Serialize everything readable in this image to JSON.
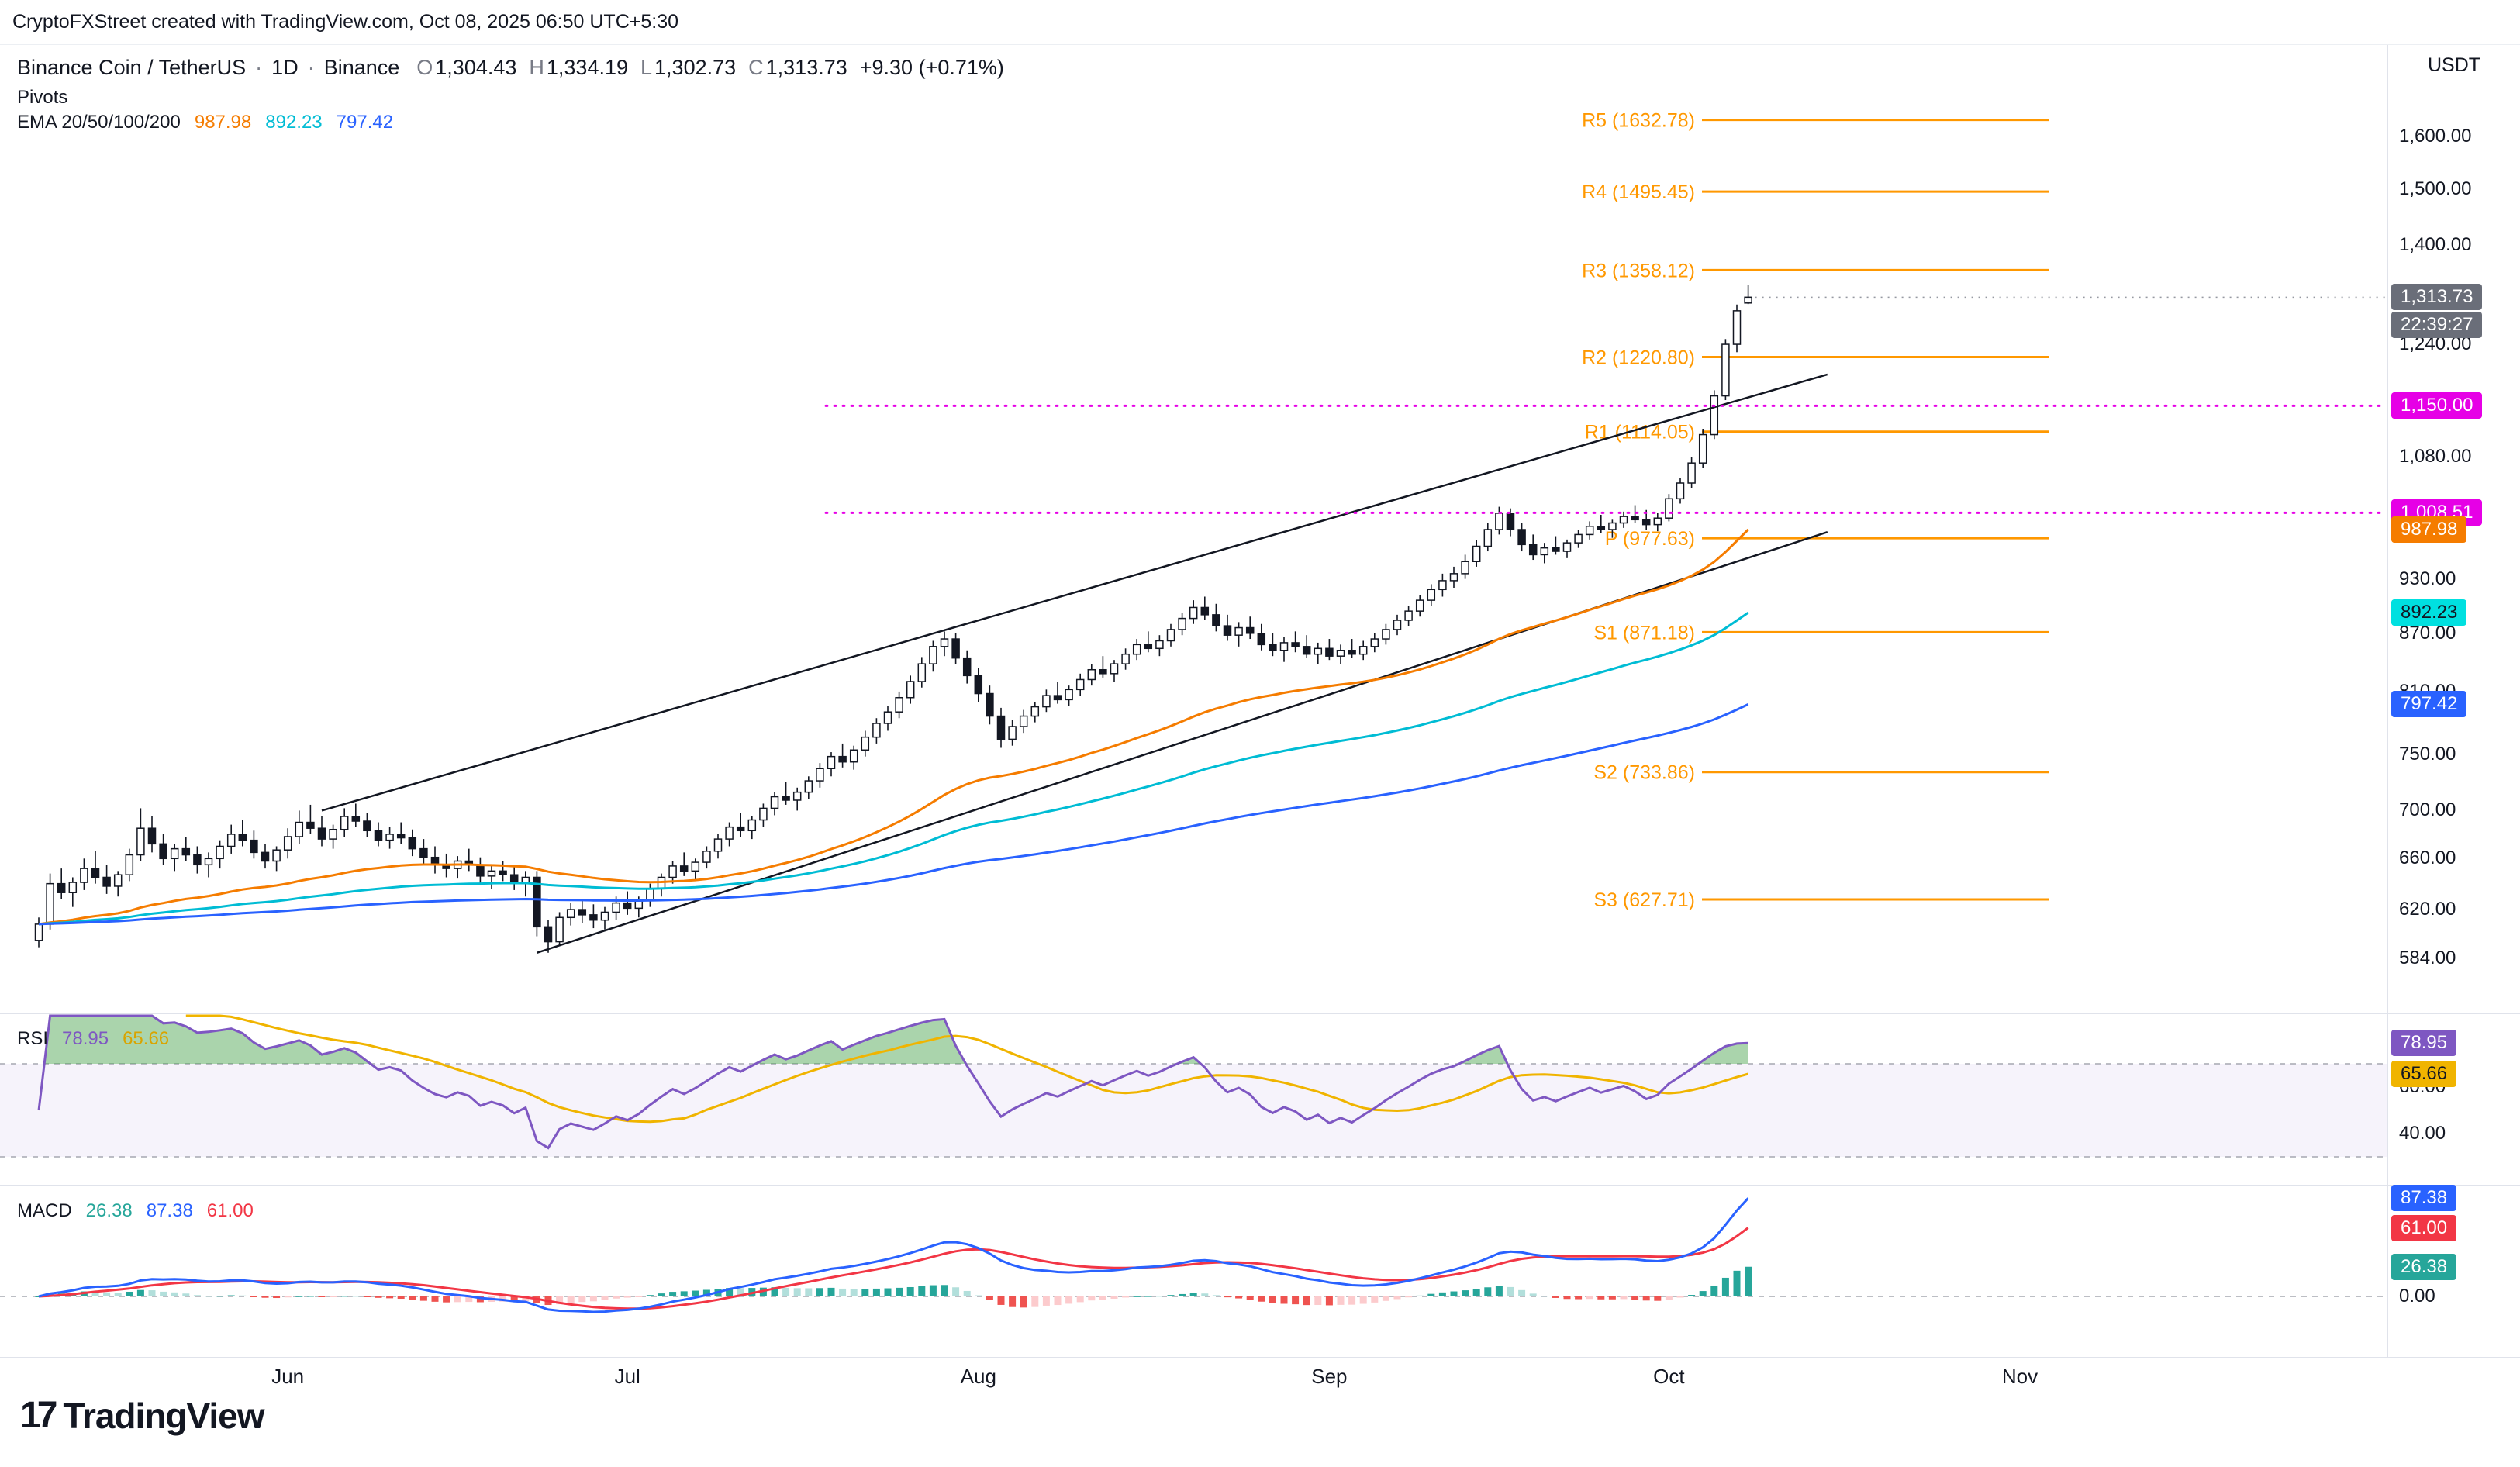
{
  "top_bar": {
    "text": "CryptoFXStreet created with TradingView.com, Oct 08, 2025 06:50 UTC+5:30"
  },
  "header": {
    "symbol": "Binance Coin / TetherUS",
    "separator": "·",
    "interval": "1D",
    "exchange": "Binance",
    "ohlc": [
      {
        "label": "O",
        "value": "1,304.43"
      },
      {
        "label": "H",
        "value": "1,334.19"
      },
      {
        "label": "L",
        "value": "1,302.73"
      },
      {
        "label": "C",
        "value": "1,313.73"
      }
    ],
    "change": "+9.30 (+0.71%)",
    "pivots_label": "Pivots",
    "ema": {
      "label": "EMA 20/50/100/200",
      "values": [
        {
          "text": "987.98",
          "color": "#f57c00"
        },
        {
          "text": "892.23",
          "color": "#00bcd4"
        },
        {
          "text": "797.42",
          "color": "#2962ff"
        }
      ]
    }
  },
  "rsi_panel": {
    "title": "RSI",
    "values": [
      {
        "text": "78.95",
        "color": "#7e57c2"
      },
      {
        "text": "65.66",
        "color": "#d9a400"
      }
    ],
    "badges": [
      {
        "name": "rsi-badge",
        "text": "78.95",
        "value": 78.95,
        "bg": "#7e57c2",
        "fg": "#ffffff"
      },
      {
        "name": "rsi-ma-badge",
        "text": "65.66",
        "value": 65.66,
        "bg": "#f0b400",
        "fg": "#131722"
      }
    ],
    "ticks": [
      {
        "text": "60.00",
        "value": 60
      },
      {
        "text": "40.00",
        "value": 40
      }
    ]
  },
  "macd_panel": {
    "title": "MACD",
    "values": [
      {
        "text": "26.38",
        "color": "#26a69a"
      },
      {
        "text": "87.38",
        "color": "#2962ff"
      },
      {
        "text": "61.00",
        "color": "#f23645"
      }
    ],
    "badges": [
      {
        "name": "macd-line-badge",
        "text": "87.38",
        "value": 87.38,
        "bg": "#2962ff",
        "fg": "#ffffff"
      },
      {
        "name": "macd-signal-badge",
        "text": "61.00",
        "value": 61.0,
        "bg": "#f23645",
        "fg": "#ffffff"
      },
      {
        "name": "macd-hist-badge",
        "text": "26.38",
        "value": 26.38,
        "bg": "#26a69a",
        "fg": "#ffffff"
      }
    ],
    "ticks": [
      {
        "text": "0.00",
        "value": 0
      }
    ]
  },
  "price_scale": {
    "currency": "USDT",
    "ticks": [
      {
        "text": "1,600.00",
        "price": 1600
      },
      {
        "text": "1,500.00",
        "price": 1500
      },
      {
        "text": "1,400.00",
        "price": 1400
      },
      {
        "text": "1,240.00",
        "price": 1240
      },
      {
        "text": "1,080.00",
        "price": 1080
      },
      {
        "text": "930.00",
        "price": 930
      },
      {
        "text": "870.00",
        "price": 870
      },
      {
        "text": "810.00",
        "price": 810
      },
      {
        "text": "750.00",
        "price": 750
      },
      {
        "text": "700.00",
        "price": 700
      },
      {
        "text": "660.00",
        "price": 660
      },
      {
        "text": "620.00",
        "price": 620
      },
      {
        "text": "584.00",
        "price": 584
      }
    ],
    "badges": [
      {
        "name": "last-price-badge",
        "text": "1,313.73",
        "price": 1313.73,
        "offset": 0,
        "bg": "#6a6e79",
        "fg": "#ffffff"
      },
      {
        "name": "countdown-badge",
        "text": "22:39:27",
        "price": 1313.73,
        "offset": 36,
        "bg": "#6a6e79",
        "fg": "#ffffff"
      },
      {
        "name": "hline-1150-badge",
        "text": "1,150.00",
        "price": 1150,
        "offset": 0,
        "bg": "#e600e6",
        "fg": "#ffffff"
      },
      {
        "name": "hline-1008-badge",
        "text": "1,008.51",
        "price": 1008.51,
        "offset": 0,
        "bg": "#e600e6",
        "fg": "#ffffff"
      },
      {
        "name": "ema50-badge",
        "text": "987.98",
        "price": 987.98,
        "offset": 0,
        "bg": "#f57c00",
        "fg": "#ffffff"
      },
      {
        "name": "ema100-badge",
        "text": "892.23",
        "price": 892.23,
        "offset": 0,
        "bg": "#00e0e0",
        "fg": "#131722"
      },
      {
        "name": "ema200-badge",
        "text": "797.42",
        "price": 797.42,
        "offset": 0,
        "bg": "#2962ff",
        "fg": "#ffffff"
      }
    ]
  },
  "time_axis": {
    "months": [
      {
        "label": "Jun",
        "index": 22
      },
      {
        "label": "Jul",
        "index": 52
      },
      {
        "label": "Aug",
        "index": 83
      },
      {
        "label": "Sep",
        "index": 114
      },
      {
        "label": "Oct",
        "index": 144
      },
      {
        "label": "Nov",
        "index": 175
      }
    ]
  },
  "logo": {
    "mark": "17",
    "text": "TradingView"
  },
  "chart_data": {
    "type": "candlestick",
    "symbol": "Binance Coin / TetherUS",
    "exchange": "Binance",
    "interval": "1D",
    "price_scale_type": "log",
    "start_date": "2025-05-10",
    "end_date": "2025-10-08",
    "last_price": 1313.73,
    "countdown": "22:39:27",
    "candle_up_color": "#ffffff",
    "candle_down_color": "#131722",
    "candle_border_color": "#131722",
    "candles": [
      [
        597,
        614,
        592,
        609
      ],
      [
        609,
        648,
        605,
        640
      ],
      [
        640,
        652,
        628,
        633
      ],
      [
        633,
        645,
        622,
        641
      ],
      [
        641,
        660,
        635,
        652
      ],
      [
        652,
        666,
        640,
        645
      ],
      [
        645,
        655,
        632,
        638
      ],
      [
        638,
        650,
        630,
        647
      ],
      [
        647,
        668,
        642,
        663
      ],
      [
        663,
        702,
        658,
        685
      ],
      [
        685,
        695,
        665,
        672
      ],
      [
        672,
        680,
        655,
        660
      ],
      [
        660,
        672,
        650,
        668
      ],
      [
        668,
        678,
        658,
        663
      ],
      [
        663,
        670,
        648,
        655
      ],
      [
        655,
        665,
        645,
        660
      ],
      [
        660,
        675,
        652,
        670
      ],
      [
        670,
        688,
        664,
        680
      ],
      [
        680,
        692,
        670,
        675
      ],
      [
        675,
        683,
        660,
        665
      ],
      [
        665,
        672,
        652,
        658
      ],
      [
        658,
        670,
        650,
        667
      ],
      [
        667,
        685,
        660,
        678
      ],
      [
        678,
        700,
        672,
        690
      ],
      [
        690,
        705,
        680,
        685
      ],
      [
        685,
        695,
        670,
        676
      ],
      [
        676,
        688,
        668,
        684
      ],
      [
        684,
        702,
        678,
        695
      ],
      [
        695,
        706,
        686,
        691
      ],
      [
        691,
        698,
        678,
        683
      ],
      [
        683,
        690,
        670,
        675
      ],
      [
        675,
        686,
        668,
        680
      ],
      [
        680,
        690,
        672,
        677
      ],
      [
        677,
        684,
        662,
        668
      ],
      [
        668,
        676,
        655,
        661
      ],
      [
        661,
        670,
        648,
        655
      ],
      [
        655,
        664,
        645,
        652
      ],
      [
        652,
        662,
        644,
        658
      ],
      [
        658,
        668,
        650,
        655
      ],
      [
        655,
        661,
        640,
        646
      ],
      [
        646,
        655,
        636,
        650
      ],
      [
        650,
        658,
        642,
        647
      ],
      [
        647,
        653,
        635,
        640
      ],
      [
        640,
        650,
        630,
        645
      ],
      [
        645,
        650,
        600,
        607
      ],
      [
        607,
        612,
        588,
        596
      ],
      [
        596,
        618,
        593,
        614
      ],
      [
        614,
        625,
        608,
        620
      ],
      [
        620,
        628,
        610,
        616
      ],
      [
        616,
        624,
        606,
        612
      ],
      [
        612,
        622,
        605,
        618
      ],
      [
        618,
        630,
        612,
        625
      ],
      [
        625,
        634,
        616,
        621
      ],
      [
        621,
        630,
        614,
        627
      ],
      [
        627,
        640,
        622,
        636
      ],
      [
        636,
        648,
        630,
        645
      ],
      [
        645,
        658,
        640,
        654
      ],
      [
        654,
        665,
        646,
        650
      ],
      [
        650,
        660,
        642,
        657
      ],
      [
        657,
        670,
        652,
        666
      ],
      [
        666,
        680,
        660,
        676
      ],
      [
        676,
        690,
        670,
        686
      ],
      [
        686,
        698,
        678,
        683
      ],
      [
        683,
        695,
        676,
        692
      ],
      [
        692,
        706,
        686,
        702
      ],
      [
        702,
        716,
        696,
        712
      ],
      [
        712,
        725,
        705,
        709
      ],
      [
        709,
        720,
        700,
        716
      ],
      [
        716,
        730,
        710,
        726
      ],
      [
        726,
        742,
        720,
        737
      ],
      [
        737,
        752,
        730,
        748
      ],
      [
        748,
        760,
        738,
        743
      ],
      [
        743,
        758,
        736,
        754
      ],
      [
        754,
        772,
        748,
        766
      ],
      [
        766,
        784,
        760,
        779
      ],
      [
        779,
        796,
        772,
        790
      ],
      [
        790,
        810,
        784,
        804
      ],
      [
        804,
        826,
        798,
        820
      ],
      [
        820,
        845,
        814,
        838
      ],
      [
        838,
        862,
        830,
        856
      ],
      [
        856,
        872,
        846,
        864
      ],
      [
        864,
        870,
        838,
        844
      ],
      [
        844,
        852,
        818,
        826
      ],
      [
        826,
        834,
        800,
        808
      ],
      [
        808,
        816,
        778,
        786
      ],
      [
        786,
        794,
        756,
        764
      ],
      [
        764,
        782,
        758,
        776
      ],
      [
        776,
        792,
        770,
        786
      ],
      [
        786,
        800,
        780,
        795
      ],
      [
        795,
        812,
        790,
        806
      ],
      [
        806,
        820,
        798,
        802
      ],
      [
        802,
        816,
        796,
        812
      ],
      [
        812,
        828,
        806,
        822
      ],
      [
        822,
        838,
        816,
        832
      ],
      [
        832,
        846,
        824,
        828
      ],
      [
        828,
        842,
        820,
        838
      ],
      [
        838,
        854,
        832,
        848
      ],
      [
        848,
        864,
        842,
        858
      ],
      [
        858,
        872,
        850,
        854
      ],
      [
        854,
        868,
        846,
        862
      ],
      [
        862,
        880,
        856,
        874
      ],
      [
        874,
        892,
        868,
        886
      ],
      [
        886,
        906,
        880,
        898
      ],
      [
        898,
        910,
        884,
        890
      ],
      [
        890,
        902,
        872,
        878
      ],
      [
        878,
        890,
        862,
        868
      ],
      [
        868,
        882,
        856,
        876
      ],
      [
        876,
        888,
        864,
        870
      ],
      [
        870,
        880,
        852,
        858
      ],
      [
        858,
        870,
        846,
        852
      ],
      [
        852,
        866,
        840,
        860
      ],
      [
        860,
        872,
        850,
        856
      ],
      [
        856,
        868,
        844,
        848
      ],
      [
        848,
        860,
        838,
        854
      ],
      [
        854,
        864,
        842,
        846
      ],
      [
        846,
        858,
        838,
        852
      ],
      [
        852,
        864,
        844,
        848
      ],
      [
        848,
        862,
        842,
        856
      ],
      [
        856,
        870,
        850,
        864
      ],
      [
        864,
        880,
        858,
        874
      ],
      [
        874,
        890,
        868,
        884
      ],
      [
        884,
        900,
        878,
        894
      ],
      [
        894,
        912,
        888,
        906
      ],
      [
        906,
        924,
        900,
        918
      ],
      [
        918,
        936,
        910,
        928
      ],
      [
        928,
        944,
        920,
        936
      ],
      [
        936,
        958,
        930,
        950
      ],
      [
        950,
        975,
        944,
        968
      ],
      [
        968,
        996,
        962,
        988
      ],
      [
        988,
        1016,
        982,
        1008
      ],
      [
        1008,
        1014,
        980,
        988
      ],
      [
        988,
        996,
        962,
        970
      ],
      [
        970,
        982,
        952,
        958
      ],
      [
        958,
        972,
        948,
        966
      ],
      [
        966,
        980,
        958,
        962
      ],
      [
        962,
        976,
        954,
        972
      ],
      [
        972,
        988,
        966,
        982
      ],
      [
        982,
        998,
        976,
        992
      ],
      [
        992,
        1006,
        984,
        988
      ],
      [
        988,
        1000,
        978,
        996
      ],
      [
        996,
        1010,
        990,
        1004
      ],
      [
        1004,
        1018,
        996,
        1000
      ],
      [
        1000,
        1012,
        988,
        994
      ],
      [
        994,
        1008,
        986,
        1002
      ],
      [
        1002,
        1032,
        998,
        1026
      ],
      [
        1026,
        1052,
        1020,
        1046
      ],
      [
        1046,
        1080,
        1040,
        1072
      ],
      [
        1072,
        1118,
        1066,
        1110
      ],
      [
        1110,
        1172,
        1104,
        1164
      ],
      [
        1164,
        1248,
        1158,
        1240
      ],
      [
        1240,
        1302,
        1228,
        1292
      ],
      [
        1304.43,
        1334.19,
        1302.73,
        1313.73
      ]
    ],
    "emas": [
      {
        "period": 50,
        "color": "#f57c00",
        "last": 987.98
      },
      {
        "period": 100,
        "color": "#00bcd4",
        "last": 892.23
      },
      {
        "period": 200,
        "color": "#2962ff",
        "last": 797.42
      }
    ],
    "pivot_color": "#ff9800",
    "pivots": [
      {
        "label": "R5 (1632.78)",
        "value": 1632.78
      },
      {
        "label": "R4 (1495.45)",
        "value": 1495.45
      },
      {
        "label": "R3 (1358.12)",
        "value": 1358.12
      },
      {
        "label": "R2 (1220.80)",
        "value": 1220.8
      },
      {
        "label": "R1 (1114.05)",
        "value": 1114.05
      },
      {
        "label": "P (977.63)",
        "value": 977.63
      },
      {
        "label": "S1 (871.18)",
        "value": 871.18
      },
      {
        "label": "S2 (733.86)",
        "value": 733.86
      },
      {
        "label": "S3 (627.71)",
        "value": 627.71
      }
    ],
    "h_lines": [
      {
        "value": 1150.0,
        "label": "1,150.00",
        "color": "#e600e6"
      },
      {
        "value": 1008.51,
        "label": "1,008.51",
        "color": "#e600e6"
      }
    ],
    "trendlines": [
      {
        "from": [
          25,
          700
        ],
        "to": [
          158,
          1195
        ]
      },
      {
        "from": [
          44,
          588
        ],
        "to": [
          158,
          985
        ]
      }
    ],
    "rsi": {
      "period": 14,
      "last": 78.95,
      "ma_last": 65.66,
      "line_color": "#7e57c2",
      "ma_color": "#f0b400",
      "overbought": 70,
      "oversold": 30,
      "band_fill": "rgba(126,87,194,0.07)",
      "over_fill": "rgba(67,160,71,0.45)"
    },
    "macd": {
      "fast": 12,
      "slow": 26,
      "signal_period": 9,
      "last_macd": 87.38,
      "last_signal": 61.0,
      "last_hist": 26.38,
      "macd_color": "#2962ff",
      "signal_color": "#f23645",
      "hist_up_grow": "#26a69a",
      "hist_up_fall": "#b2dfdb",
      "hist_down_fall": "#ef5350",
      "hist_down_rise": "#fccbcd"
    },
    "x_axis": {
      "months": [
        "Jun",
        "Jul",
        "Aug",
        "Sep",
        "Oct",
        "Nov"
      ]
    }
  }
}
